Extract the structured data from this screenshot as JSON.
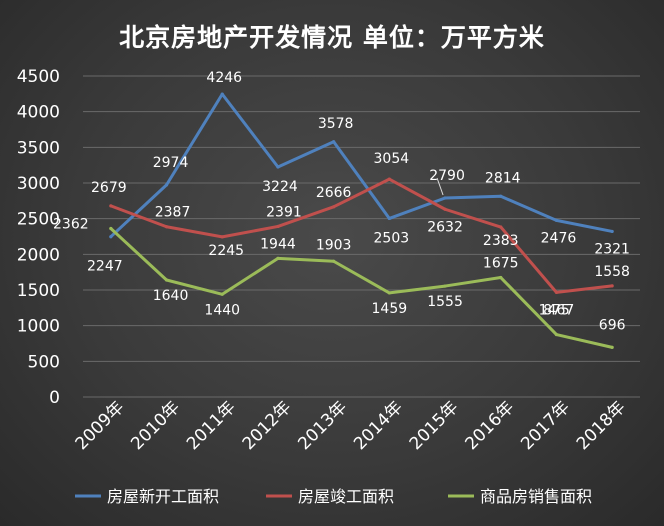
{
  "chart_data": {
    "type": "line",
    "title": "北京房地产开发情况 单位：万平方米",
    "categories": [
      "2009年",
      "2010年",
      "2011年",
      "2012年",
      "2013年",
      "2014年",
      "2015年",
      "2016年",
      "2017年",
      "2018年"
    ],
    "ylim": [
      0,
      4500
    ],
    "yticks": [
      0,
      500,
      1000,
      1500,
      2000,
      2500,
      3000,
      3500,
      4000,
      4500
    ],
    "grid": true,
    "legend_position": "bottom",
    "series": [
      {
        "name": "房屋新开工面积",
        "color": "#4f81bd",
        "values": [
          2247,
          2974,
          4246,
          3224,
          3578,
          2503,
          2790,
          2814,
          2476,
          2321
        ]
      },
      {
        "name": "房屋竣工面积",
        "color": "#c0504d",
        "values": [
          2679,
          2387,
          2245,
          2391,
          2666,
          3054,
          2632,
          2383,
          1467,
          1558
        ]
      },
      {
        "name": "商品房销售面积",
        "color": "#9bbb59",
        "values": [
          2362,
          1640,
          1440,
          1944,
          1903,
          1459,
          1555,
          1675,
          875,
          696
        ]
      }
    ]
  }
}
